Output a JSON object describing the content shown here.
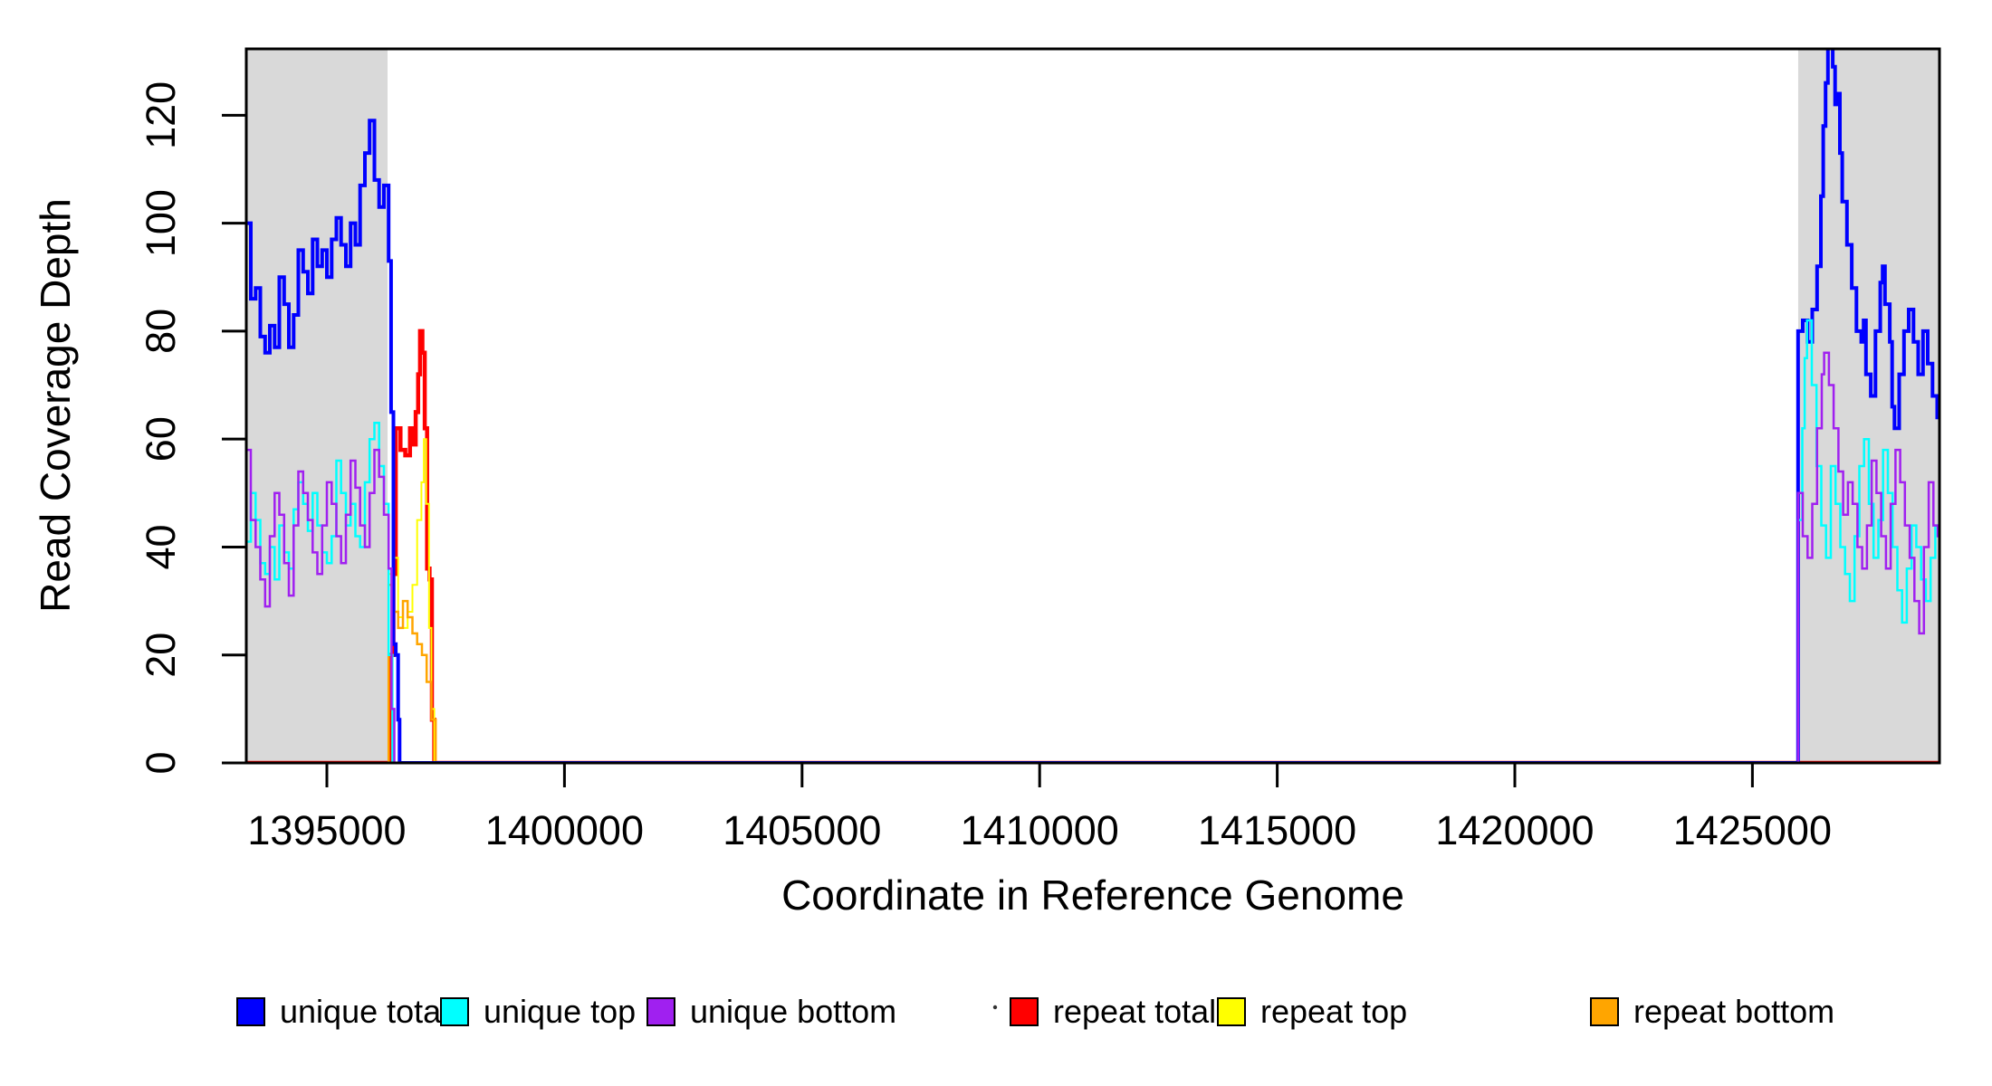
{
  "chart_data": {
    "type": "line",
    "style": "step",
    "title": "",
    "xlabel": "Coordinate in Reference Genome",
    "ylabel": "Read Coverage Depth",
    "xlim": [
      1393304,
      1428937
    ],
    "ylim": [
      0,
      132.3
    ],
    "x_ticks": [
      1395000,
      1400000,
      1405000,
      1410000,
      1415000,
      1420000,
      1425000
    ],
    "y_ticks": [
      0,
      20,
      40,
      60,
      80,
      100,
      120
    ],
    "grid": false,
    "background": "#ffffff",
    "shaded_regions": [
      {
        "name": "left-shaded-region",
        "x0": 1393304,
        "x1": 1396277,
        "color": "#d9d9d9"
      },
      {
        "name": "right-shaded-region",
        "x0": 1425964,
        "x1": 1428937,
        "color": "#d9d9d9"
      }
    ],
    "series": [
      {
        "name": "repeat total",
        "color": "#ff0000",
        "width": 4.5,
        "points": [
          [
            1393304,
            0
          ],
          [
            1396350,
            20
          ],
          [
            1396400,
            35
          ],
          [
            1396450,
            62
          ],
          [
            1396550,
            58
          ],
          [
            1396650,
            57
          ],
          [
            1396750,
            62
          ],
          [
            1396820,
            59
          ],
          [
            1396870,
            65
          ],
          [
            1396920,
            72
          ],
          [
            1396960,
            80
          ],
          [
            1397010,
            76
          ],
          [
            1397060,
            62
          ],
          [
            1397110,
            36
          ],
          [
            1397160,
            34
          ],
          [
            1397210,
            8
          ],
          [
            1397260,
            0
          ]
        ]
      },
      {
        "name": "repeat top",
        "color": "#ffff00",
        "width": 2,
        "points": [
          [
            1393304,
            0
          ],
          [
            1396300,
            35
          ],
          [
            1396400,
            38
          ],
          [
            1396500,
            27
          ],
          [
            1396600,
            25
          ],
          [
            1396700,
            28
          ],
          [
            1396800,
            33
          ],
          [
            1396900,
            45
          ],
          [
            1396990,
            52
          ],
          [
            1397040,
            60
          ],
          [
            1397090,
            48
          ],
          [
            1397150,
            25
          ],
          [
            1397200,
            10
          ],
          [
            1397260,
            0
          ]
        ]
      },
      {
        "name": "repeat bottom",
        "color": "#ffa500",
        "width": 2.5,
        "points": [
          [
            1393304,
            0
          ],
          [
            1396300,
            33
          ],
          [
            1396400,
            28
          ],
          [
            1396500,
            25
          ],
          [
            1396600,
            30
          ],
          [
            1396700,
            27
          ],
          [
            1396800,
            24
          ],
          [
            1396900,
            22
          ],
          [
            1397000,
            20
          ],
          [
            1397100,
            15
          ],
          [
            1397200,
            8
          ],
          [
            1397290,
            0
          ]
        ]
      },
      {
        "name": "unique total",
        "color": "#0000ff",
        "width": 4,
        "points": [
          [
            1393304,
            100
          ],
          [
            1393400,
            86
          ],
          [
            1393500,
            88
          ],
          [
            1393600,
            79
          ],
          [
            1393700,
            76
          ],
          [
            1393800,
            81
          ],
          [
            1393900,
            77
          ],
          [
            1394000,
            90
          ],
          [
            1394100,
            85
          ],
          [
            1394200,
            77
          ],
          [
            1394300,
            83
          ],
          [
            1394400,
            95
          ],
          [
            1394500,
            91
          ],
          [
            1394600,
            87
          ],
          [
            1394700,
            97
          ],
          [
            1394800,
            92
          ],
          [
            1394900,
            95
          ],
          [
            1395000,
            90
          ],
          [
            1395100,
            97
          ],
          [
            1395200,
            101
          ],
          [
            1395300,
            96
          ],
          [
            1395400,
            92
          ],
          [
            1395500,
            100
          ],
          [
            1395600,
            96
          ],
          [
            1395700,
            107
          ],
          [
            1395800,
            113
          ],
          [
            1395900,
            119
          ],
          [
            1396000,
            108
          ],
          [
            1396100,
            103
          ],
          [
            1396200,
            107
          ],
          [
            1396300,
            93
          ],
          [
            1396350,
            65
          ],
          [
            1396400,
            22
          ],
          [
            1396450,
            20
          ],
          [
            1396500,
            8
          ],
          [
            1396530,
            0
          ],
          [
            1425960,
            80
          ],
          [
            1426060,
            82
          ],
          [
            1426160,
            78
          ],
          [
            1426260,
            84
          ],
          [
            1426360,
            92
          ],
          [
            1426440,
            105
          ],
          [
            1426490,
            118
          ],
          [
            1426540,
            126
          ],
          [
            1426590,
            133
          ],
          [
            1426690,
            129
          ],
          [
            1426740,
            122
          ],
          [
            1426790,
            124
          ],
          [
            1426840,
            113
          ],
          [
            1426890,
            104
          ],
          [
            1426990,
            96
          ],
          [
            1427090,
            88
          ],
          [
            1427190,
            80
          ],
          [
            1427290,
            78
          ],
          [
            1427340,
            82
          ],
          [
            1427390,
            72
          ],
          [
            1427490,
            68
          ],
          [
            1427590,
            80
          ],
          [
            1427690,
            89
          ],
          [
            1427740,
            92
          ],
          [
            1427790,
            85
          ],
          [
            1427890,
            78
          ],
          [
            1427940,
            66
          ],
          [
            1427990,
            62
          ],
          [
            1428090,
            72
          ],
          [
            1428190,
            80
          ],
          [
            1428290,
            84
          ],
          [
            1428390,
            78
          ],
          [
            1428490,
            72
          ],
          [
            1428590,
            80
          ],
          [
            1428690,
            74
          ],
          [
            1428790,
            68
          ],
          [
            1428890,
            64
          ]
        ]
      },
      {
        "name": "unique top",
        "color": "#00ffff",
        "width": 2.5,
        "points": [
          [
            1393304,
            41
          ],
          [
            1393400,
            50
          ],
          [
            1393500,
            45
          ],
          [
            1393600,
            37
          ],
          [
            1393700,
            35
          ],
          [
            1393800,
            40
          ],
          [
            1393900,
            34
          ],
          [
            1394000,
            44
          ],
          [
            1394100,
            39
          ],
          [
            1394200,
            36
          ],
          [
            1394300,
            47
          ],
          [
            1394400,
            52
          ],
          [
            1394500,
            48
          ],
          [
            1394600,
            43
          ],
          [
            1394700,
            50
          ],
          [
            1394800,
            44
          ],
          [
            1394900,
            39
          ],
          [
            1395000,
            37
          ],
          [
            1395100,
            42
          ],
          [
            1395200,
            56
          ],
          [
            1395300,
            50
          ],
          [
            1395400,
            44
          ],
          [
            1395500,
            48
          ],
          [
            1395600,
            42
          ],
          [
            1395700,
            40
          ],
          [
            1395800,
            52
          ],
          [
            1395900,
            60
          ],
          [
            1396000,
            63
          ],
          [
            1396100,
            55
          ],
          [
            1396200,
            48
          ],
          [
            1396300,
            20
          ],
          [
            1396380,
            0
          ],
          [
            1425960,
            45
          ],
          [
            1426050,
            62
          ],
          [
            1426100,
            75
          ],
          [
            1426150,
            82
          ],
          [
            1426250,
            70
          ],
          [
            1426350,
            55
          ],
          [
            1426450,
            44
          ],
          [
            1426550,
            38
          ],
          [
            1426650,
            55
          ],
          [
            1426750,
            48
          ],
          [
            1426850,
            40
          ],
          [
            1426950,
            35
          ],
          [
            1427050,
            30
          ],
          [
            1427150,
            42
          ],
          [
            1427250,
            55
          ],
          [
            1427350,
            60
          ],
          [
            1427450,
            48
          ],
          [
            1427550,
            38
          ],
          [
            1427650,
            45
          ],
          [
            1427750,
            58
          ],
          [
            1427850,
            50
          ],
          [
            1427950,
            40
          ],
          [
            1428050,
            32
          ],
          [
            1428150,
            26
          ],
          [
            1428250,
            36
          ],
          [
            1428350,
            44
          ],
          [
            1428450,
            40
          ],
          [
            1428550,
            34
          ],
          [
            1428650,
            30
          ],
          [
            1428750,
            38
          ],
          [
            1428850,
            44
          ]
        ]
      },
      {
        "name": "unique bottom",
        "color": "#a020f0",
        "width": 2.5,
        "points": [
          [
            1393304,
            58
          ],
          [
            1393400,
            45
          ],
          [
            1393500,
            40
          ],
          [
            1393600,
            34
          ],
          [
            1393700,
            29
          ],
          [
            1393800,
            42
          ],
          [
            1393900,
            50
          ],
          [
            1394000,
            46
          ],
          [
            1394100,
            37
          ],
          [
            1394200,
            31
          ],
          [
            1394300,
            44
          ],
          [
            1394400,
            54
          ],
          [
            1394500,
            50
          ],
          [
            1394600,
            45
          ],
          [
            1394700,
            39
          ],
          [
            1394800,
            35
          ],
          [
            1394900,
            44
          ],
          [
            1395000,
            52
          ],
          [
            1395100,
            48
          ],
          [
            1395200,
            42
          ],
          [
            1395300,
            37
          ],
          [
            1395400,
            46
          ],
          [
            1395500,
            56
          ],
          [
            1395600,
            51
          ],
          [
            1395700,
            44
          ],
          [
            1395800,
            40
          ],
          [
            1395900,
            50
          ],
          [
            1396000,
            58
          ],
          [
            1396100,
            53
          ],
          [
            1396200,
            46
          ],
          [
            1396300,
            36
          ],
          [
            1396360,
            10
          ],
          [
            1396420,
            0
          ],
          [
            1425960,
            50
          ],
          [
            1426060,
            42
          ],
          [
            1426160,
            38
          ],
          [
            1426260,
            48
          ],
          [
            1426360,
            62
          ],
          [
            1426460,
            72
          ],
          [
            1426510,
            76
          ],
          [
            1426610,
            70
          ],
          [
            1426710,
            62
          ],
          [
            1426810,
            54
          ],
          [
            1426910,
            46
          ],
          [
            1427010,
            52
          ],
          [
            1427110,
            48
          ],
          [
            1427210,
            40
          ],
          [
            1427310,
            36
          ],
          [
            1427410,
            44
          ],
          [
            1427510,
            56
          ],
          [
            1427610,
            50
          ],
          [
            1427710,
            42
          ],
          [
            1427810,
            36
          ],
          [
            1427910,
            48
          ],
          [
            1428010,
            58
          ],
          [
            1428110,
            52
          ],
          [
            1428210,
            44
          ],
          [
            1428310,
            38
          ],
          [
            1428410,
            30
          ],
          [
            1428510,
            24
          ],
          [
            1428610,
            40
          ],
          [
            1428710,
            52
          ],
          [
            1428810,
            44
          ],
          [
            1428900,
            42
          ]
        ]
      }
    ],
    "legend": {
      "position": "bottom",
      "items": [
        {
          "label": "unique total",
          "color": "#0000ff"
        },
        {
          "label": "unique top",
          "color": "#00ffff"
        },
        {
          "label": "unique bottom",
          "color": "#a020f0"
        },
        {
          "label": "repeat total",
          "color": "#ff0000"
        },
        {
          "label": "repeat top",
          "color": "#ffff00"
        },
        {
          "label": "repeat bottom",
          "color": "#ffa500"
        }
      ]
    }
  }
}
